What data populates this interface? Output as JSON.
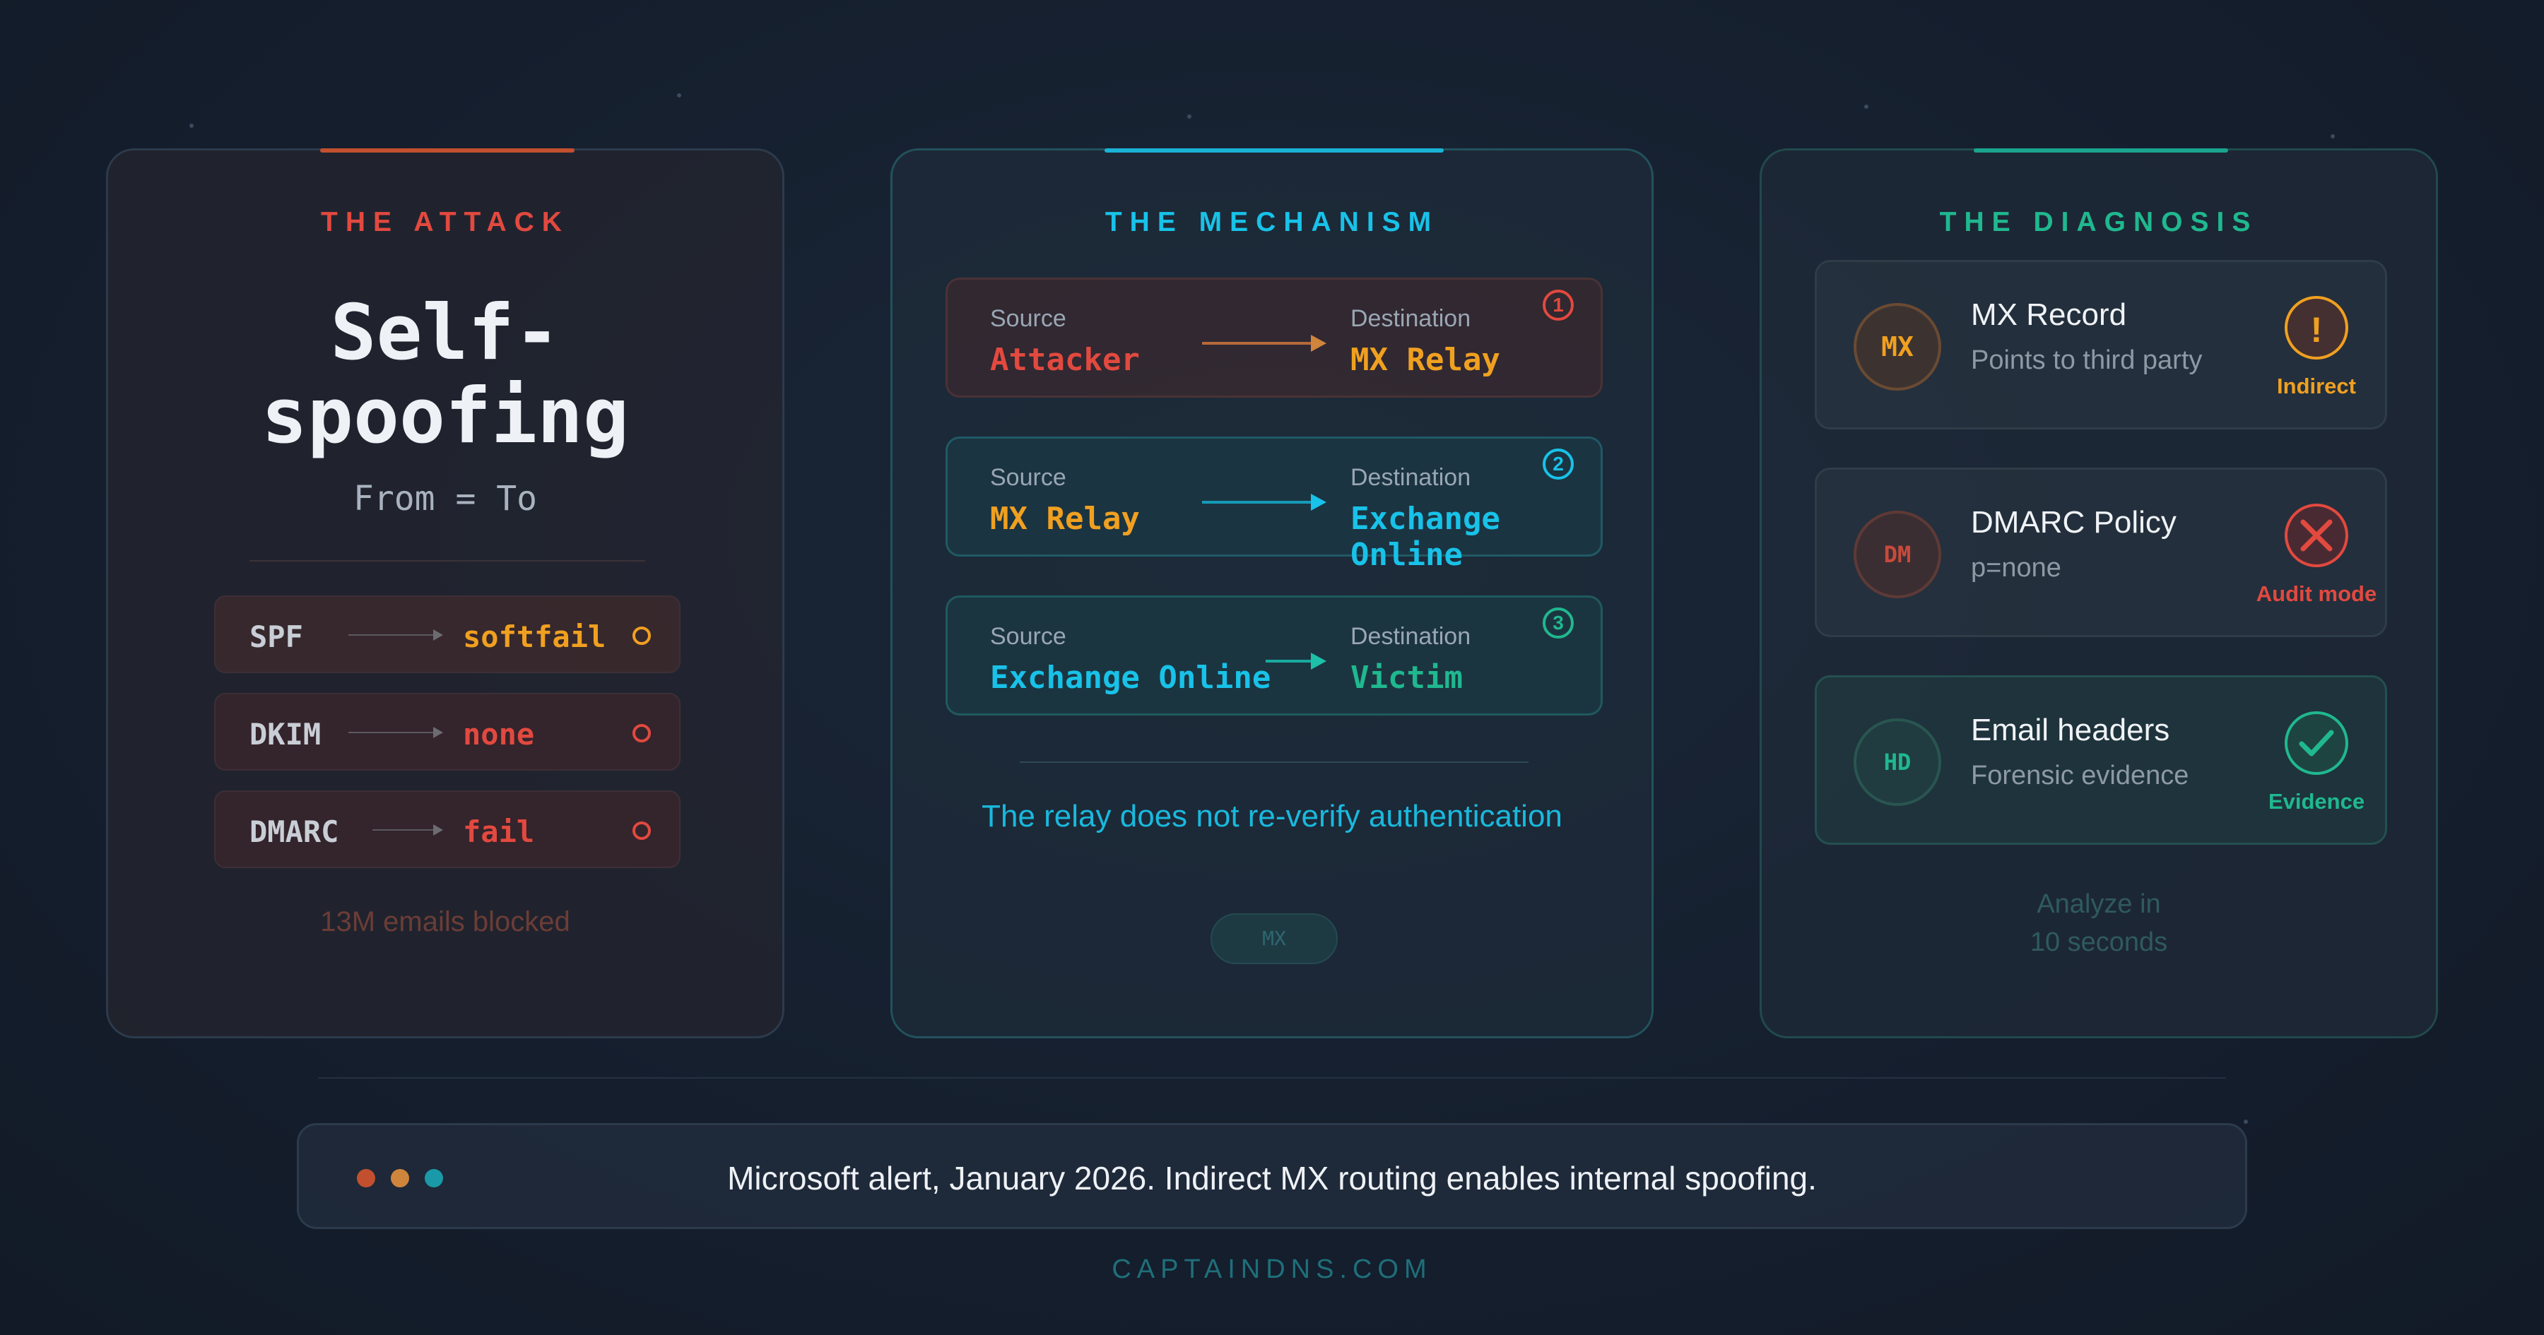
{
  "colors": {
    "attack_accent": "#e2493f",
    "mechanism_accent": "#18c2e8",
    "diagnosis_accent": "#20b88f",
    "warning_orange": "#f0a020",
    "fail_red": "#e2493f"
  },
  "attack": {
    "title": "THE ATTACK",
    "headline": "Self-\nspoofing",
    "subtitle": "From = To",
    "checks": [
      {
        "label": "SPF",
        "result": "softfail",
        "status_color": "#f0a020"
      },
      {
        "label": "DKIM",
        "result": "none",
        "status_color": "#e2493f"
      },
      {
        "label": "DMARC",
        "result": "fail",
        "status_color": "#e2493f"
      }
    ],
    "footnote": "13M emails blocked"
  },
  "mechanism": {
    "title": "THE MECHANISM",
    "flows": [
      {
        "num": "1",
        "source_label": "Source",
        "source": "Attacker",
        "dest_label": "Destination",
        "dest": "MX Relay"
      },
      {
        "num": "2",
        "source_label": "Source",
        "source": "MX Relay",
        "dest_label": "Destination",
        "dest": "Exchange Online"
      },
      {
        "num": "3",
        "source_label": "Source",
        "source": "Exchange Online",
        "dest_label": "Destination",
        "dest": "Victim"
      }
    ],
    "note": "The relay does not re-verify authentication",
    "pill": "MX"
  },
  "diagnosis": {
    "title": "THE DIAGNOSIS",
    "cards": [
      {
        "badge": "MX",
        "title": "MX Record",
        "subtitle": "Points to third party",
        "icon": "warning-icon",
        "icon_label": "Indirect"
      },
      {
        "badge": "DM",
        "title": "DMARC Policy",
        "subtitle": "p=none",
        "icon": "close-icon",
        "icon_label": "Audit mode"
      },
      {
        "badge": "HD",
        "title": "Email headers",
        "subtitle": "Forensic evidence",
        "icon": "check-icon",
        "icon_label": "Evidence"
      }
    ],
    "footnote_line1": "Analyze in",
    "footnote_line2": "10 seconds"
  },
  "alert": {
    "text": "Microsoft alert, January 2026. Indirect MX routing enables internal spoofing."
  },
  "footer": "CAPTAINDNS.COM"
}
